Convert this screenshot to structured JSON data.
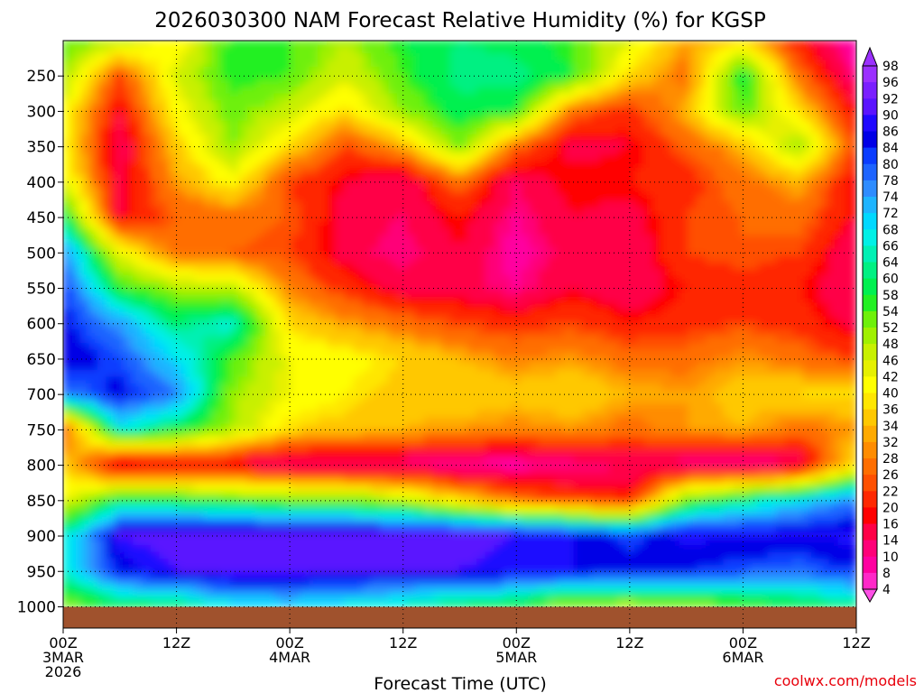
{
  "chart_data": {
    "type": "heatmap",
    "title": "2026030300 NAM Forecast Relative Humidity (%) for KGSP",
    "xlabel": "Forecast Time (UTC)",
    "ylabel": "",
    "credit": "coolwx.com/models",
    "x_unit": "forecast hour",
    "x_range": [
      0,
      84
    ],
    "x_ticks": [
      {
        "hour": 0,
        "lines": [
          "00Z",
          "3MAR",
          "2026"
        ]
      },
      {
        "hour": 12,
        "lines": [
          "12Z"
        ]
      },
      {
        "hour": 24,
        "lines": [
          "00Z",
          "4MAR"
        ]
      },
      {
        "hour": 36,
        "lines": [
          "12Z"
        ]
      },
      {
        "hour": 48,
        "lines": [
          "00Z",
          "5MAR"
        ]
      },
      {
        "hour": 60,
        "lines": [
          "12Z"
        ]
      },
      {
        "hour": 72,
        "lines": [
          "00Z",
          "6MAR"
        ]
      },
      {
        "hour": 84,
        "lines": [
          "12Z"
        ]
      }
    ],
    "y_unit": "pressure (mb)",
    "y_range": [
      1030,
      200
    ],
    "y_ticks": [
      250,
      300,
      350,
      400,
      450,
      500,
      550,
      600,
      650,
      700,
      750,
      800,
      850,
      900,
      950,
      1000
    ],
    "ground_color": "#a0522d",
    "colorbar": {
      "levels": [
        "98",
        "96",
        "92",
        "90",
        "86",
        "84",
        "80",
        "78",
        "74",
        "72",
        "68",
        "66",
        "64",
        "60",
        "58",
        "54",
        "52",
        "48",
        "46",
        "42",
        "40",
        "36",
        "34",
        "32",
        "28",
        "26",
        "22",
        "20",
        "16",
        "14",
        "10",
        "8",
        "4"
      ],
      "colors": [
        "#9b30ff",
        "#7a1fff",
        "#5a14ff",
        "#1f08ff",
        "#0000e6",
        "#0a3cff",
        "#1e64ff",
        "#2e8cff",
        "#1eb4ff",
        "#00d8ff",
        "#00f0e6",
        "#00f0b4",
        "#00f082",
        "#00f050",
        "#23f023",
        "#6ef00a",
        "#a0f000",
        "#c8f000",
        "#e6f000",
        "#ffff00",
        "#ffe600",
        "#ffc800",
        "#ffaa00",
        "#ff8c00",
        "#ff6e00",
        "#ff5000",
        "#ff2800",
        "#ff0000",
        "#ff0046",
        "#ff0078",
        "#ff00a0",
        "#ff28c8",
        "#ff50e6"
      ]
    },
    "rh_grid": {
      "x": [
        0,
        6,
        12,
        18,
        24,
        30,
        36,
        42,
        48,
        54,
        60,
        66,
        72,
        78,
        84
      ],
      "y": [
        200,
        250,
        300,
        350,
        400,
        450,
        500,
        550,
        600,
        650,
        700,
        750,
        800,
        850,
        900,
        950,
        1000
      ],
      "values": [
        [
          58,
          52,
          42,
          60,
          58,
          52,
          60,
          64,
          62,
          58,
          48,
          34,
          40,
          22,
          10
        ],
        [
          54,
          26,
          48,
          60,
          58,
          48,
          58,
          66,
          66,
          60,
          40,
          30,
          62,
          30,
          14
        ],
        [
          46,
          20,
          44,
          56,
          50,
          40,
          54,
          62,
          60,
          30,
          24,
          36,
          58,
          40,
          20
        ],
        [
          44,
          16,
          38,
          54,
          40,
          26,
          36,
          56,
          30,
          18,
          20,
          28,
          36,
          54,
          26
        ],
        [
          48,
          18,
          34,
          44,
          26,
          20,
          16,
          30,
          16,
          22,
          22,
          24,
          30,
          36,
          20
        ],
        [
          64,
          20,
          28,
          30,
          28,
          18,
          16,
          22,
          14,
          20,
          18,
          26,
          28,
          30,
          20
        ],
        [
          80,
          46,
          30,
          28,
          26,
          18,
          14,
          20,
          12,
          18,
          16,
          26,
          28,
          26,
          16
        ],
        [
          86,
          60,
          52,
          50,
          32,
          24,
          18,
          18,
          14,
          20,
          16,
          22,
          24,
          22,
          16
        ],
        [
          88,
          78,
          64,
          70,
          40,
          34,
          30,
          26,
          24,
          26,
          22,
          24,
          26,
          24,
          18
        ],
        [
          90,
          84,
          72,
          58,
          46,
          44,
          40,
          36,
          32,
          34,
          30,
          30,
          34,
          30,
          26
        ],
        [
          80,
          88,
          80,
          54,
          46,
          42,
          38,
          40,
          38,
          40,
          36,
          34,
          38,
          40,
          40
        ],
        [
          26,
          70,
          62,
          52,
          40,
          38,
          36,
          34,
          32,
          34,
          30,
          34,
          36,
          30,
          34
        ],
        [
          40,
          16,
          20,
          18,
          14,
          14,
          14,
          12,
          12,
          14,
          16,
          14,
          12,
          16,
          42
        ],
        [
          46,
          62,
          60,
          58,
          56,
          56,
          50,
          40,
          30,
          26,
          22,
          56,
          64,
          72,
          80
        ],
        [
          66,
          92,
          94,
          94,
          94,
          94,
          94,
          94,
          92,
          90,
          84,
          92,
          90,
          90,
          92
        ],
        [
          68,
          88,
          92,
          94,
          94,
          92,
          92,
          92,
          90,
          90,
          88,
          86,
          84,
          82,
          86
        ],
        [
          54,
          60,
          62,
          70,
          72,
          70,
          66,
          62,
          58,
          52,
          50,
          54,
          56,
          60,
          64
        ]
      ]
    }
  }
}
